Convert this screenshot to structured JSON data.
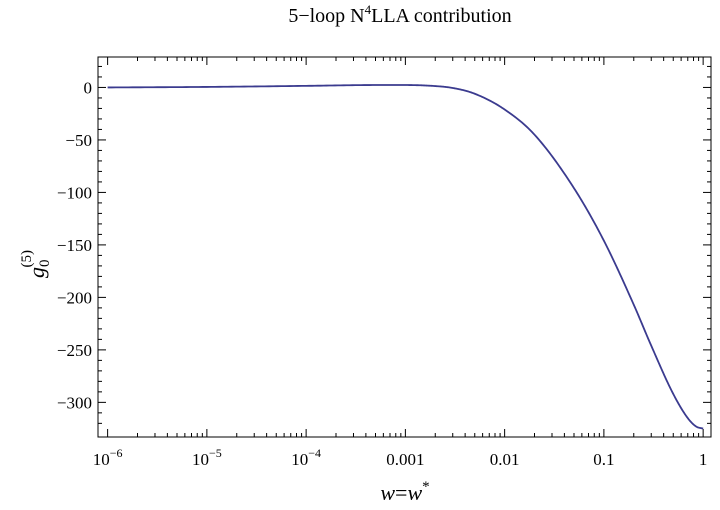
{
  "chart_data": {
    "type": "line",
    "title": {
      "pre": "5−loop N",
      "sup": "4",
      "post": "LLA contribution"
    },
    "xlabel": {
      "base": "w",
      "eq": "=",
      "base2": "w",
      "sup": "*"
    },
    "ylabel": {
      "base": "g",
      "sub": "0",
      "sup": "(5)"
    },
    "xscale": "log",
    "xlim": [
      8e-07,
      1.2
    ],
    "ylim": [
      -333,
      29
    ],
    "x_ticks": [
      {
        "value": 1e-06,
        "label_base": "10",
        "label_exp": "−6"
      },
      {
        "value": 1e-05,
        "label_base": "10",
        "label_exp": "−5"
      },
      {
        "value": 0.0001,
        "label_base": "10",
        "label_exp": "−4"
      },
      {
        "value": 0.001,
        "label": "0.001"
      },
      {
        "value": 0.01,
        "label": "0.01"
      },
      {
        "value": 0.1,
        "label": "0.1"
      },
      {
        "value": 1,
        "label": "1"
      }
    ],
    "y_ticks": [
      {
        "value": 0,
        "label": "0"
      },
      {
        "value": -50,
        "label": "−50"
      },
      {
        "value": -100,
        "label": "−100"
      },
      {
        "value": -150,
        "label": "−150"
      },
      {
        "value": -200,
        "label": "−200"
      },
      {
        "value": -250,
        "label": "−250"
      },
      {
        "value": -300,
        "label": "−300"
      }
    ],
    "grid": false,
    "series": [
      {
        "name": "g0(5)",
        "color": "#3b3b8f",
        "x": [
          1e-06,
          1e-05,
          0.0001,
          0.0005,
          0.001,
          0.002,
          0.003,
          0.005,
          0.01,
          0.02,
          0.05,
          0.1,
          0.2,
          0.3,
          0.5,
          0.7,
          0.85,
          1.0
        ],
        "y": [
          0,
          0.5,
          1.5,
          2.3,
          2.3,
          1.3,
          -0.5,
          -6,
          -21,
          -45,
          -96,
          -146,
          -207,
          -246,
          -292,
          -315,
          -323,
          -325
        ]
      }
    ]
  }
}
